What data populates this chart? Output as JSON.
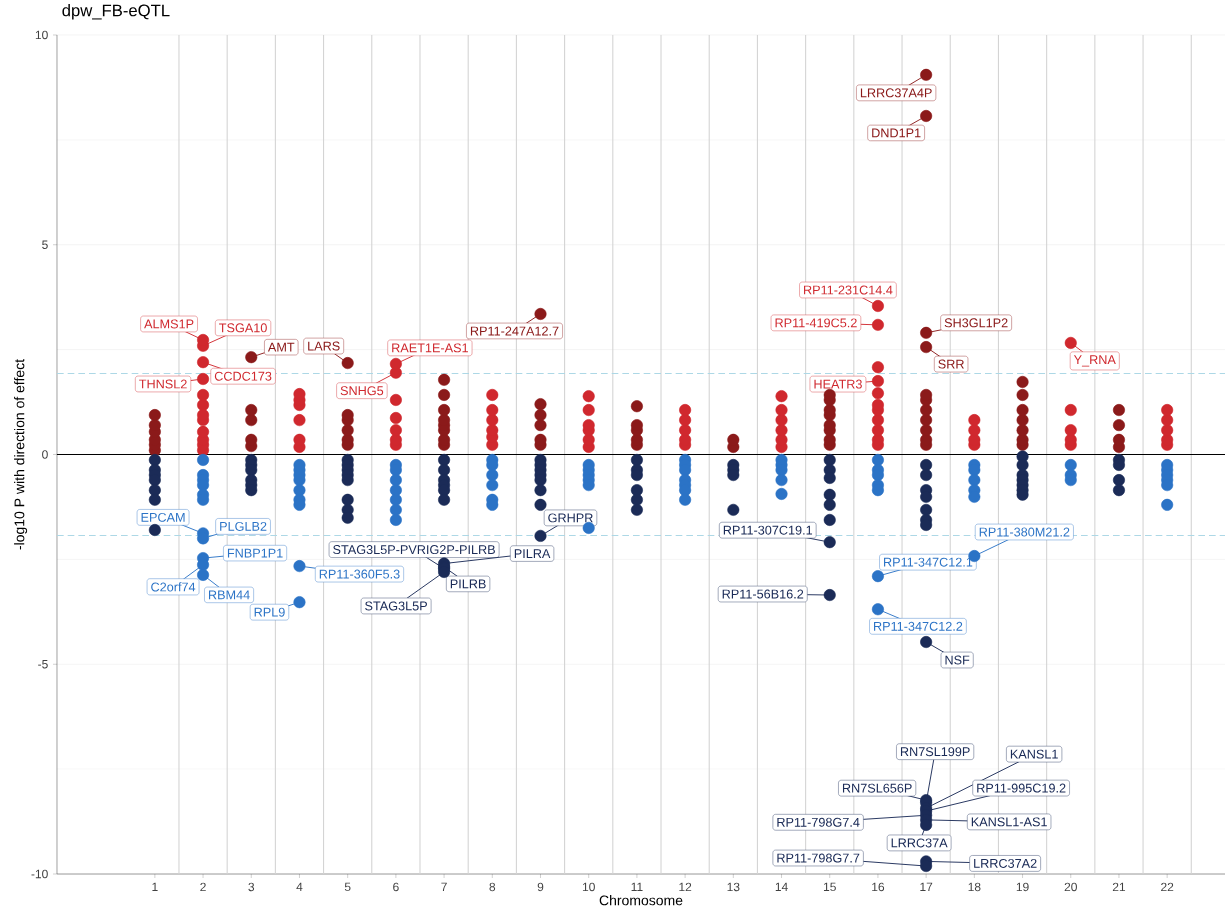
{
  "chart_data": {
    "type": "scatter",
    "title": "dpw_FB-eQTL",
    "xlabel": "Chromosome",
    "ylabel": "-log10 P with direction of effect",
    "categories": [
      "1",
      "2",
      "3",
      "4",
      "5",
      "6",
      "7",
      "8",
      "9",
      "10",
      "11",
      "12",
      "13",
      "14",
      "15",
      "16",
      "17",
      "18",
      "19",
      "20",
      "21",
      "22"
    ],
    "ylim": [
      -10,
      10
    ],
    "yticks": [
      -10,
      -5,
      0,
      5,
      10
    ],
    "grid": true,
    "marker": "circle",
    "series": [
      {
        "color": "#8b1a1a",
        "x": [
          "1",
          "1",
          "1",
          "1",
          "1",
          "1",
          "3",
          "3",
          "3",
          "3",
          "3",
          "5",
          "5",
          "5",
          "5",
          "5",
          "5",
          "7",
          "7",
          "7",
          "7",
          "7",
          "7",
          "7",
          "7",
          "9",
          "9",
          "9",
          "9",
          "9",
          "9",
          "11",
          "11",
          "11",
          "11",
          "11",
          "13",
          "13",
          "15",
          "15",
          "15",
          "15",
          "15",
          "15",
          "15",
          "15",
          "17",
          "17",
          "17",
          "17",
          "17",
          "17",
          "17",
          "17",
          "17",
          "17",
          "17",
          "19",
          "19",
          "19",
          "19",
          "19",
          "19",
          "19",
          "21",
          "21",
          "21",
          "21"
        ],
        "values": [
          0.1,
          0.23,
          0.35,
          0.54,
          0.7,
          0.94,
          0.2,
          0.35,
          0.82,
          1.06,
          2.32,
          0.23,
          0.35,
          0.58,
          0.82,
          0.94,
          2.18,
          0.23,
          0.35,
          0.58,
          0.7,
          0.82,
          1.06,
          1.42,
          1.78,
          0.23,
          0.35,
          0.7,
          0.94,
          1.2,
          3.35,
          0.23,
          0.35,
          0.58,
          0.7,
          1.15,
          0.18,
          0.35,
          0.23,
          0.35,
          0.58,
          0.7,
          0.94,
          1.06,
          1.3,
          1.42,
          0.23,
          0.35,
          0.58,
          0.82,
          1.06,
          1.3,
          1.42,
          2.56,
          2.9,
          8.07,
          9.05,
          0.23,
          0.35,
          0.58,
          0.82,
          1.06,
          1.42,
          1.73,
          0.18,
          0.35,
          0.7,
          1.06
        ]
      },
      {
        "color": "#d0282e",
        "x": [
          "2",
          "2",
          "2",
          "2",
          "2",
          "2",
          "2",
          "2",
          "2",
          "2",
          "2",
          "2",
          "4",
          "4",
          "4",
          "4",
          "4",
          "4",
          "6",
          "6",
          "6",
          "6",
          "6",
          "6",
          "6",
          "8",
          "8",
          "8",
          "8",
          "8",
          "8",
          "10",
          "10",
          "10",
          "10",
          "10",
          "10",
          "12",
          "12",
          "12",
          "12",
          "12",
          "14",
          "14",
          "14",
          "14",
          "14",
          "14",
          "16",
          "16",
          "16",
          "16",
          "16",
          "16",
          "16",
          "16",
          "16",
          "16",
          "16",
          "18",
          "18",
          "18",
          "18",
          "20",
          "20",
          "20",
          "20",
          "20",
          "22",
          "22",
          "22",
          "22",
          "22"
        ],
        "values": [
          0.1,
          0.23,
          0.35,
          0.54,
          0.82,
          0.94,
          1.18,
          1.42,
          1.8,
          2.2,
          2.59,
          2.73,
          0.18,
          0.35,
          0.82,
          1.18,
          1.3,
          1.44,
          0.23,
          0.35,
          0.58,
          0.87,
          1.3,
          1.95,
          2.16,
          0.23,
          0.42,
          0.58,
          0.82,
          1.06,
          1.42,
          0.18,
          0.35,
          0.58,
          0.7,
          1.06,
          1.39,
          0.23,
          0.35,
          0.58,
          0.82,
          1.06,
          0.18,
          0.35,
          0.58,
          0.82,
          1.06,
          1.39,
          0.23,
          0.35,
          0.58,
          0.82,
          1.06,
          1.18,
          1.46,
          1.75,
          2.08,
          3.09,
          3.54,
          0.23,
          0.35,
          0.58,
          0.82,
          0.23,
          0.35,
          0.58,
          1.06,
          2.66,
          0.23,
          0.35,
          0.58,
          0.82,
          1.06
        ]
      },
      {
        "color": "#1b2b57",
        "x": [
          "1",
          "1",
          "1",
          "1",
          "1",
          "1",
          "1",
          "3",
          "3",
          "3",
          "3",
          "3",
          "3",
          "5",
          "5",
          "5",
          "5",
          "5",
          "5",
          "5",
          "5",
          "7",
          "7",
          "7",
          "7",
          "7",
          "7",
          "7",
          "7",
          "7",
          "7",
          "9",
          "9",
          "9",
          "9",
          "9",
          "9",
          "9",
          "9",
          "11",
          "11",
          "11",
          "11",
          "11",
          "11",
          "13",
          "13",
          "13",
          "13",
          "15",
          "15",
          "15",
          "15",
          "15",
          "15",
          "15",
          "15",
          "17",
          "17",
          "17",
          "17",
          "17",
          "17",
          "17",
          "17",
          "17",
          "17",
          "17",
          "17",
          "17",
          "17",
          "17",
          "17",
          "17",
          "19",
          "19",
          "19",
          "19",
          "19",
          "19",
          "19",
          "21",
          "21",
          "21",
          "21"
        ],
        "values": [
          -0.13,
          -0.37,
          -0.49,
          -0.61,
          -0.85,
          -1.08,
          -1.8,
          -0.13,
          -0.25,
          -0.37,
          -0.61,
          -0.73,
          -0.85,
          -0.13,
          -0.25,
          -0.37,
          -0.49,
          -0.61,
          -1.08,
          -1.32,
          -1.51,
          -0.13,
          -0.37,
          -0.61,
          -0.73,
          -0.85,
          -1.08,
          -2.6,
          -2.68,
          -2.72,
          -2.8,
          -0.13,
          -0.25,
          -0.37,
          -0.49,
          -0.61,
          -0.85,
          -1.2,
          -1.94,
          -0.13,
          -0.37,
          -0.49,
          -0.85,
          -1.08,
          -1.32,
          -0.25,
          -0.37,
          -0.49,
          -1.32,
          -0.13,
          -0.37,
          -0.56,
          -0.96,
          -1.2,
          -1.56,
          -2.09,
          -3.35,
          -0.25,
          -0.49,
          -0.85,
          -1.01,
          -1.32,
          -1.56,
          -1.68,
          -4.47,
          -8.24,
          -8.3,
          -8.43,
          -8.5,
          -8.6,
          -8.71,
          -8.83,
          -9.7,
          -9.81,
          -0.05,
          -0.25,
          -0.49,
          -0.61,
          -0.73,
          -0.85,
          -0.96,
          -0.13,
          -0.25,
          -0.61,
          -0.85
        ]
      },
      {
        "color": "#2b73c6",
        "x": [
          "2",
          "2",
          "2",
          "2",
          "2",
          "2",
          "2",
          "2",
          "2",
          "2",
          "2",
          "4",
          "4",
          "4",
          "4",
          "4",
          "4",
          "4",
          "4",
          "4",
          "6",
          "6",
          "6",
          "6",
          "6",
          "6",
          "6",
          "8",
          "8",
          "8",
          "8",
          "8",
          "8",
          "10",
          "10",
          "10",
          "10",
          "10",
          "10",
          "12",
          "12",
          "12",
          "12",
          "12",
          "12",
          "12",
          "14",
          "14",
          "14",
          "14",
          "14",
          "16",
          "16",
          "16",
          "16",
          "16",
          "16",
          "16",
          "18",
          "18",
          "18",
          "18",
          "18",
          "18",
          "20",
          "20",
          "20",
          "22",
          "22",
          "22",
          "22",
          "22",
          "22"
        ],
        "values": [
          -0.13,
          -0.49,
          -0.61,
          -0.73,
          -0.96,
          -1.08,
          -1.88,
          -2.0,
          -2.47,
          -2.63,
          -2.87,
          -0.25,
          -0.37,
          -0.49,
          -0.61,
          -0.85,
          -1.08,
          -1.2,
          -2.66,
          -3.52,
          -0.25,
          -0.37,
          -0.61,
          -0.85,
          -1.08,
          -1.32,
          -1.56,
          -0.13,
          -0.25,
          -0.49,
          -0.73,
          -1.08,
          -1.2,
          -0.25,
          -0.37,
          -0.49,
          -0.61,
          -0.73,
          -1.75,
          -0.13,
          -0.25,
          -0.37,
          -0.61,
          -0.73,
          -0.85,
          -1.08,
          -0.13,
          -0.25,
          -0.37,
          -0.61,
          -0.94,
          -0.13,
          -0.37,
          -0.49,
          -0.73,
          -0.85,
          -2.9,
          -3.69,
          -0.25,
          -0.37,
          -0.61,
          -0.85,
          -1.01,
          -2.42,
          -0.25,
          -0.49,
          -0.61,
          -0.25,
          -0.37,
          -0.49,
          -0.61,
          -0.73,
          -1.2
        ]
      }
    ],
    "ref_lines": [
      {
        "axis": "y",
        "value": 1.93,
        "color": "#add8e6",
        "line_style": "dashed"
      },
      {
        "axis": "y",
        "value": -1.93,
        "color": "#add8e6",
        "line_style": "dashed"
      },
      {
        "axis": "y",
        "value": 0,
        "color": "#000000"
      }
    ],
    "annotations": [
      {
        "text": "ALMS1P",
        "x": "2",
        "y": 2.73
      },
      {
        "text": "TSGA10",
        "x": "2",
        "y": 2.59
      },
      {
        "text": "THNSL2",
        "x": "2",
        "y": 1.8
      },
      {
        "text": "CCDC173",
        "x": "2",
        "y": 2.2
      },
      {
        "text": "AMT",
        "x": "3",
        "y": 2.32
      },
      {
        "text": "LARS",
        "x": "5",
        "y": 2.18
      },
      {
        "text": "SNHG5",
        "x": "6",
        "y": 1.95
      },
      {
        "text": "RAET1E-AS1",
        "x": "6",
        "y": 2.16
      },
      {
        "text": "RP11-247A12.7",
        "x": "9",
        "y": 3.35
      },
      {
        "text": "RP11-231C14.4",
        "x": "16",
        "y": 3.54
      },
      {
        "text": "RP11-419C5.2",
        "x": "16",
        "y": 3.09
      },
      {
        "text": "SH3GL1P2",
        "x": "17",
        "y": 2.9
      },
      {
        "text": "SRR",
        "x": "17",
        "y": 2.56
      },
      {
        "text": "HEATR3",
        "x": "16",
        "y": 1.75
      },
      {
        "text": "Y_RNA",
        "x": "20",
        "y": 2.66
      },
      {
        "text": "LRRC37A4P",
        "x": "17",
        "y": 9.05
      },
      {
        "text": "DND1P1",
        "x": "17",
        "y": 8.07
      },
      {
        "text": "EPCAM",
        "x": "2",
        "y": -1.88
      },
      {
        "text": "PLGLB2",
        "x": "2",
        "y": -2.0
      },
      {
        "text": "FNBP1P1",
        "x": "2",
        "y": -2.47
      },
      {
        "text": "C2orf74",
        "x": "2",
        "y": -2.63
      },
      {
        "text": "RBM44",
        "x": "2",
        "y": -2.87
      },
      {
        "text": "RP11-360F5.3",
        "x": "4",
        "y": -2.66
      },
      {
        "text": "RPL9",
        "x": "4",
        "y": -3.52
      },
      {
        "text": "GRHPR",
        "x": "9",
        "y": -1.94
      },
      {
        "text": "STAG3L5P-PVRIG2P-PILRB",
        "x": "7",
        "y": -2.72
      },
      {
        "text": "PILRA",
        "x": "7",
        "y": -2.6
      },
      {
        "text": "PILRB",
        "x": "7",
        "y": -2.68
      },
      {
        "text": "STAG3L5P",
        "x": "7",
        "y": -2.8
      },
      {
        "text": "RP11-307C19.1",
        "x": "15",
        "y": -2.09
      },
      {
        "text": "RP11-380M21.2",
        "x": "18",
        "y": -2.42
      },
      {
        "text": "RP11-347C12.1",
        "x": "16",
        "y": -2.9
      },
      {
        "text": "RP11-56B16.2",
        "x": "15",
        "y": -3.35
      },
      {
        "text": "RP11-347C12.2",
        "x": "16",
        "y": -3.69
      },
      {
        "text": "NSF",
        "x": "17",
        "y": -4.47
      },
      {
        "text": "RN7SL199P",
        "x": "17",
        "y": -8.3
      },
      {
        "text": "KANSL1",
        "x": "17",
        "y": -8.43
      },
      {
        "text": "RN7SL656P",
        "x": "17",
        "y": -8.24
      },
      {
        "text": "RP11-995C19.2",
        "x": "17",
        "y": -8.5
      },
      {
        "text": "RP11-798G7.4",
        "x": "17",
        "y": -8.6
      },
      {
        "text": "KANSL1-AS1",
        "x": "17",
        "y": -8.71
      },
      {
        "text": "LRRC37A",
        "x": "17",
        "y": -8.83
      },
      {
        "text": "LRRC37A2",
        "x": "17",
        "y": -9.7
      },
      {
        "text": "RP11-798G7.7",
        "x": "17",
        "y": -9.81
      }
    ]
  }
}
